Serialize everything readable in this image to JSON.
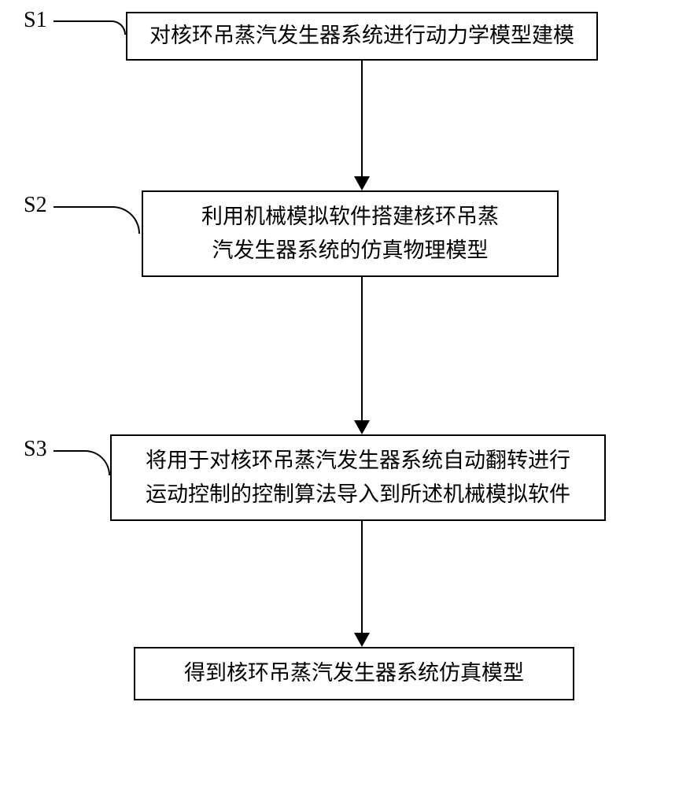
{
  "flowchart": {
    "type": "flowchart",
    "background_color": "#ffffff",
    "border_color": "#000000",
    "text_color": "#000000",
    "font_size": 27,
    "label_font_size": 28,
    "nodes": [
      {
        "id": "s1",
        "label": "S1",
        "text": "对核环吊蒸汽发生器系统进行动力学模型建模"
      },
      {
        "id": "s2",
        "label": "S2",
        "line1": "利用机械模拟软件搭建核环吊蒸",
        "line2": "汽发生器系统的仿真物理模型"
      },
      {
        "id": "s3",
        "label": "S3",
        "line1": "将用于对核环吊蒸汽发生器系统自动翻转进行",
        "line2": "运动控制的控制算法导入到所述机械模拟软件"
      },
      {
        "id": "s4",
        "text": "得到核环吊蒸汽发生器系统仿真模型"
      }
    ],
    "edges": [
      {
        "from": "s1",
        "to": "s2"
      },
      {
        "from": "s2",
        "to": "s3"
      },
      {
        "from": "s3",
        "to": "s4"
      }
    ]
  }
}
